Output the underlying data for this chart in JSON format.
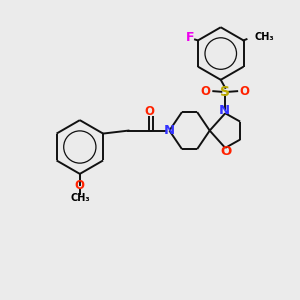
{
  "background_color": "#ebebeb",
  "atom_colors": {
    "C": "#000000",
    "N": "#3333ff",
    "O": "#ff2200",
    "S": "#bbaa00",
    "F": "#ee00ee"
  },
  "bond_color": "#111111",
  "bond_width": 1.4,
  "figsize": [
    3.0,
    3.0
  ],
  "dpi": 100,
  "xlim": [
    0,
    10
  ],
  "ylim": [
    0,
    10
  ]
}
